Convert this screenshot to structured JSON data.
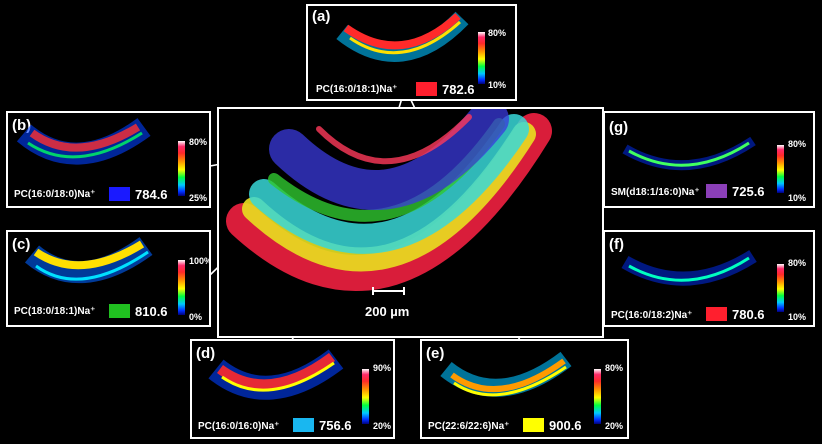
{
  "center": {
    "scalebar_label": "200 µm"
  },
  "panels": [
    {
      "id": "a",
      "label": "(a)",
      "lipid": "PC(16:0/18:1)Na⁺",
      "mass": "782.6",
      "max": "80%",
      "min": "10%",
      "swatch": "#ff1f2e"
    },
    {
      "id": "b",
      "label": "(b)",
      "lipid": "PC(16:0/18:0)Na⁺",
      "mass": "784.6",
      "max": "80%",
      "min": "25%",
      "swatch": "#1a1aff"
    },
    {
      "id": "c",
      "label": "(c)",
      "lipid": "PC(18:0/18:1)Na⁺",
      "mass": "810.6",
      "max": "100%",
      "min": "0%",
      "swatch": "#20c020"
    },
    {
      "id": "d",
      "label": "(d)",
      "lipid": "PC(16:0/16:0)Na⁺",
      "mass": "756.6",
      "max": "90%",
      "min": "20%",
      "swatch": "#19b7f0"
    },
    {
      "id": "e",
      "label": "(e)",
      "lipid": "PC(22:6/22:6)Na⁺",
      "mass": "900.6",
      "max": "80%",
      "min": "20%",
      "swatch": "#ffff00"
    },
    {
      "id": "f",
      "label": "(f)",
      "lipid": "PC(16:0/18:2)Na⁺",
      "mass": "780.6",
      "max": "80%",
      "min": "10%",
      "swatch": "#ff1f2e"
    },
    {
      "id": "g",
      "label": "(g)",
      "lipid": "SM(d18:1/16:0)Na⁺",
      "mass": "725.6",
      "max": "80%",
      "min": "10%",
      "swatch": "#8b3fb8"
    }
  ]
}
